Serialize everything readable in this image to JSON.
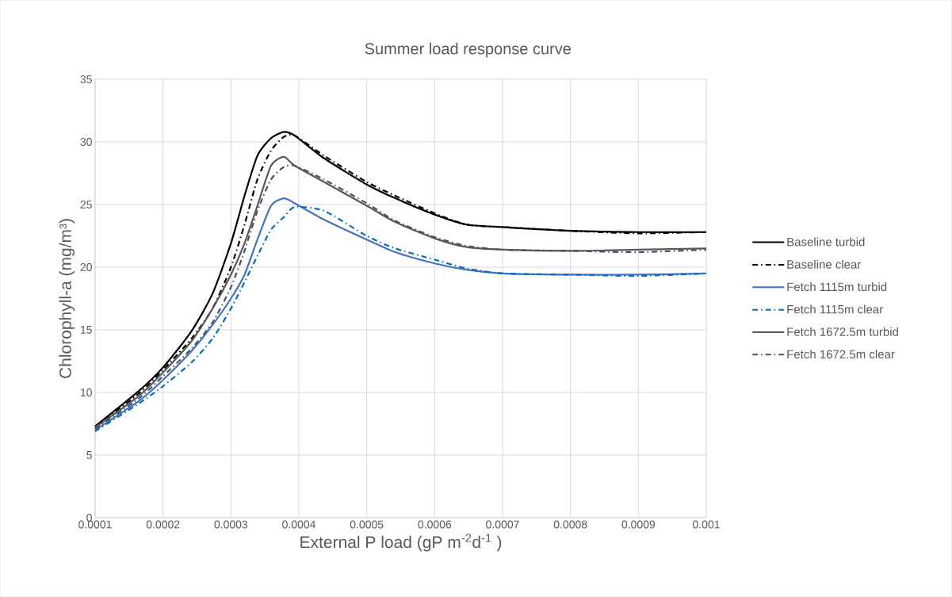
{
  "chart_data": {
    "type": "line",
    "title": "Summer load response curve",
    "xlabel": "External P load (gP m$^{-2}$d$^{-1}$ )",
    "ylabel": "Chlorophyll-a (mg/m³)",
    "x": [
      0.0001,
      0.000164,
      0.0002,
      0.000242,
      0.000273,
      0.0003,
      0.00032,
      0.000339,
      0.000359,
      0.000378,
      0.000394,
      0.000437,
      0.0005,
      0.000542,
      0.0006,
      0.000647,
      0.0007,
      0.0008,
      0.0009,
      0.001
    ],
    "series": [
      {
        "name": "Baseline turbid",
        "color": "#000000",
        "line_style": "solid",
        "values": [
          7.3,
          10.1,
          12.0,
          14.9,
          17.9,
          21.9,
          25.7,
          28.9,
          30.3,
          30.8,
          30.5,
          28.7,
          26.6,
          25.5,
          24.2,
          23.4,
          23.2,
          22.9,
          22.8,
          22.8
        ]
      },
      {
        "name": "Baseline clear",
        "color": "#000000",
        "line_style": "dashed",
        "values": [
          7.2,
          9.9,
          11.8,
          14.3,
          16.7,
          20.0,
          23.4,
          27.0,
          29.3,
          30.4,
          30.5,
          28.9,
          26.8,
          25.7,
          24.3,
          23.4,
          23.2,
          22.9,
          22.7,
          22.8
        ]
      },
      {
        "name": "Fetch 1115m turbid",
        "color": "#4472c4",
        "line_style": "solid",
        "values": [
          7.0,
          9.3,
          11.0,
          13.3,
          15.4,
          17.5,
          19.4,
          22.2,
          24.9,
          25.5,
          25.1,
          23.8,
          22.2,
          21.2,
          20.3,
          19.8,
          19.5,
          19.4,
          19.4,
          19.5
        ]
      },
      {
        "name": "Fetch 1115m clear",
        "color": "#0070c0",
        "line_style": "dashed",
        "values": [
          6.9,
          9.1,
          10.5,
          12.4,
          14.3,
          16.7,
          18.8,
          20.9,
          23.0,
          24.0,
          24.8,
          24.5,
          22.5,
          21.5,
          20.6,
          19.9,
          19.5,
          19.4,
          19.3,
          19.5
        ]
      },
      {
        "name": "Fetch 1672.5m turbid",
        "color": "#595959",
        "line_style": "solid",
        "values": [
          7.2,
          9.7,
          11.6,
          14.1,
          16.7,
          19.4,
          21.9,
          24.9,
          28.1,
          28.8,
          28.1,
          26.8,
          24.9,
          23.6,
          22.3,
          21.6,
          21.4,
          21.3,
          21.4,
          21.5
        ]
      },
      {
        "name": "Fetch 1672.5m clear",
        "color": "#44546a",
        "line_style": "dashed",
        "values": [
          7.1,
          9.5,
          11.3,
          13.5,
          15.6,
          18.4,
          21.3,
          24.5,
          27.0,
          28.0,
          28.1,
          27.0,
          25.1,
          23.7,
          22.4,
          21.7,
          21.4,
          21.3,
          21.2,
          21.4
        ]
      }
    ],
    "xlim": [
      0.0001,
      0.001
    ],
    "xticks": [
      0.0001,
      0.0002,
      0.0003,
      0.0004,
      0.0005,
      0.0006,
      0.0007,
      0.0008,
      0.0009,
      0.001
    ],
    "ylim": [
      0,
      35
    ],
    "yticks": [
      0,
      5,
      10,
      15,
      20,
      25,
      30,
      35
    ],
    "grid": true,
    "legend": "right",
    "marker": "none"
  }
}
